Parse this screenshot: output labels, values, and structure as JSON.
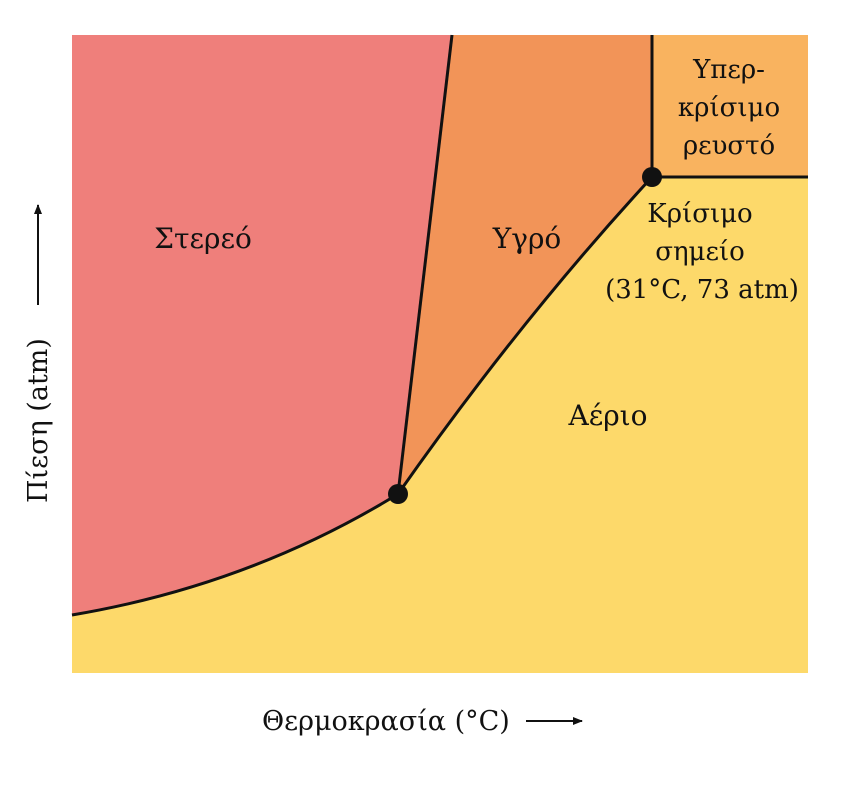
{
  "diagram": {
    "regions": {
      "solid": {
        "label": "Στερεό",
        "color": "#ef7f7b"
      },
      "liquid": {
        "label": "Υγρό",
        "color": "#f29458"
      },
      "gas": {
        "label": "Αέριο",
        "color": "#fdd96a"
      },
      "supercritical": {
        "lines": [
          "Υπερ-",
          "κρίσιμο",
          "ρευστό"
        ],
        "color": "#f9b35f"
      }
    },
    "critical_point": {
      "lines": [
        "Κρίσιμο",
        "σημείο",
        "(31°C, 73 atm)"
      ]
    },
    "axes": {
      "x_label": "Θερμοκρασία (°C)",
      "y_label": "Πίεση (atm)"
    },
    "line_color": "#111111"
  }
}
